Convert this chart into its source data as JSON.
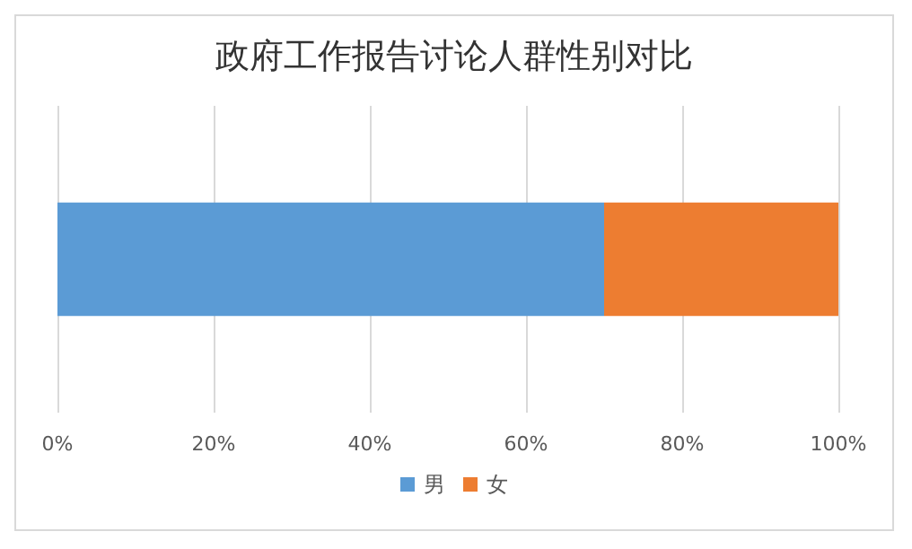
{
  "chart_data": {
    "type": "bar",
    "title": "政府工作报告讨论人群性别对比",
    "orientation": "horizontal",
    "stacked": true,
    "categories": [
      null
    ],
    "series": [
      {
        "name": "男",
        "color": "#5b9bd5",
        "values": [
          70
        ]
      },
      {
        "name": "女",
        "color": "#ed7d31",
        "values": [
          30
        ]
      }
    ],
    "xlim": [
      0,
      100
    ],
    "xticks": [
      {
        "value": 0,
        "label": "0%"
      },
      {
        "value": 20,
        "label": "20%"
      },
      {
        "value": 40,
        "label": "40%"
      },
      {
        "value": 60,
        "label": "60%"
      },
      {
        "value": 80,
        "label": "80%"
      },
      {
        "value": 100,
        "label": "100%"
      }
    ],
    "grid": "x",
    "legend": "bottom"
  }
}
